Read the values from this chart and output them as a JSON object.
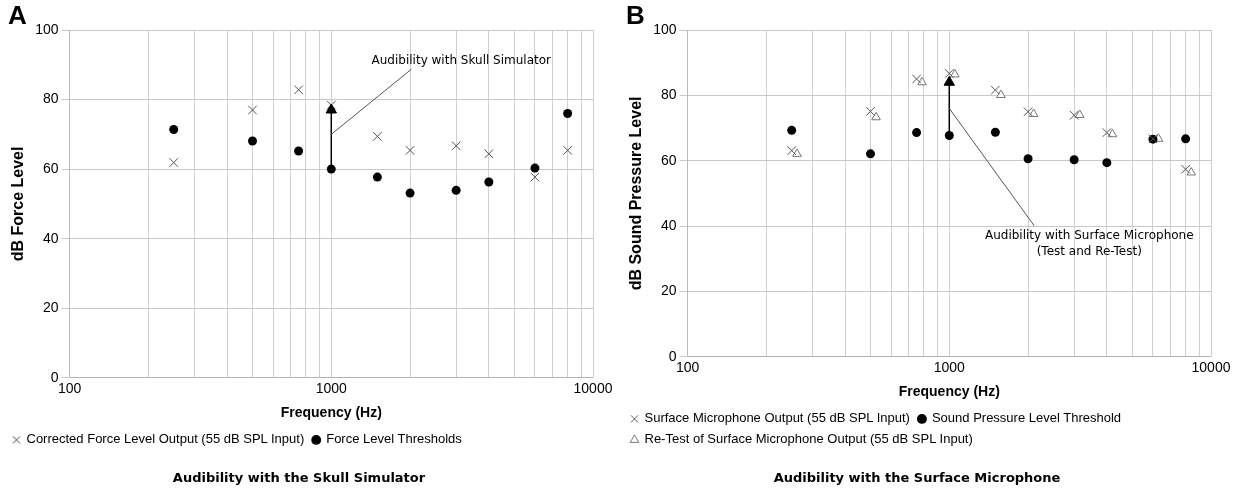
{
  "chart_data": [
    {
      "type": "scatter",
      "title": "Audibility with the Skull Simulator",
      "xlabel": "Frequency (Hz)",
      "ylabel": "dB Force Level",
      "log": "x",
      "grid": true,
      "legend": "bottom",
      "xlim": [
        100,
        10000
      ],
      "xticks": [
        100,
        {
          "value": 200,
          "label": null
        },
        {
          "value": 300,
          "label": null
        },
        {
          "value": 400,
          "label": null
        },
        {
          "value": 500,
          "label": null
        },
        {
          "value": 600,
          "label": null
        },
        {
          "value": 700,
          "label": null
        },
        {
          "value": 800,
          "label": null
        },
        {
          "value": 900,
          "label": null
        },
        1000,
        {
          "value": 2000,
          "label": null
        },
        {
          "value": 3000,
          "label": null
        },
        {
          "value": 4000,
          "label": null
        },
        {
          "value": 5000,
          "label": null
        },
        {
          "value": 6000,
          "label": null
        },
        {
          "value": 7000,
          "label": null
        },
        {
          "value": 8000,
          "label": null
        },
        {
          "value": 9000,
          "label": null
        },
        10000
      ],
      "ylim": [
        0,
        100
      ],
      "yticks": [
        0,
        20,
        40,
        60,
        80,
        100
      ],
      "x": [
        250,
        500,
        750,
        1000,
        1500,
        2000,
        3000,
        4000,
        6000,
        8000
      ],
      "series": [
        {
          "name": "Force Level Thresholds",
          "color": "#000000",
          "marker": "circle",
          "values": [
            71.4,
            68.1,
            65.2,
            60,
            57.7,
            53.1,
            53.9,
            56.3,
            60.3,
            76
          ]
        },
        {
          "name": "Corrected Force Level Output (55 dB SPL Input)",
          "color": "#555555",
          "marker": "cross",
          "values": [
            61.9,
            77,
            82.8,
            78.4,
            69.4,
            65.4,
            66.7,
            64.4,
            57.7,
            65.4
          ]
        },
        {
          "type": "line",
          "color": "#000000",
          "marker": "triangle",
          "x": [
            1000,
            1000
          ],
          "values": [
            60,
            77
          ]
        }
      ],
      "annotations": [
        "A",
        {
          "text": "Audibility with Skull Simulator",
          "x": 1000,
          "y": 70
        }
      ]
    },
    {
      "type": "scatter",
      "title": "Audibility with the Surface Microphone",
      "xlabel": "Frequency (Hz)",
      "ylabel": "dB Sound Pressure Level",
      "log": "x",
      "grid": true,
      "legend": "bottom",
      "xlim": [
        100,
        10000
      ],
      "xticks": [
        100,
        {
          "value": 200,
          "label": null
        },
        {
          "value": 300,
          "label": null
        },
        {
          "value": 400,
          "label": null
        },
        {
          "value": 500,
          "label": null
        },
        {
          "value": 600,
          "label": null
        },
        {
          "value": 700,
          "label": null
        },
        {
          "value": 800,
          "label": null
        },
        {
          "value": 900,
          "label": null
        },
        1000,
        {
          "value": 2000,
          "label": null
        },
        {
          "value": 3000,
          "label": null
        },
        {
          "value": 4000,
          "label": null
        },
        {
          "value": 5000,
          "label": null
        },
        {
          "value": 6000,
          "label": null
        },
        {
          "value": 7000,
          "label": null
        },
        {
          "value": 8000,
          "label": null
        },
        {
          "value": 9000,
          "label": null
        },
        10000
      ],
      "ylim": [
        0,
        100
      ],
      "yticks": [
        0,
        20,
        40,
        60,
        80,
        100
      ],
      "x": [
        250,
        500,
        750,
        1000,
        1500,
        2000,
        3000,
        4000,
        6000,
        8000
      ],
      "series": [
        {
          "name": "Sound Pressure Level Threshold",
          "color": "#000000",
          "marker": "circle",
          "values": [
            69.3,
            62.1,
            68.6,
            67.7,
            68.7,
            60.6,
            60.3,
            59.4,
            66.6,
            66.7
          ]
        },
        {
          "name": "Surface Microphone Output (55 dB SPL Input)",
          "color": "#555555",
          "marker": "cross",
          "values": [
            63.1,
            75.1,
            85,
            86.7,
            81.6,
            75,
            73.9,
            68.6,
            66.7,
            57.4
          ]
        },
        {
          "name": "Re-Test of Surface Microphone Output (55 dB SPL Input)",
          "color": "#777777",
          "marker": "triangle",
          "x": [
            262,
            525,
            787,
            1050,
            1575,
            2100,
            3150,
            4200,
            6300,
            8400
          ],
          "values": [
            62.1,
            73.3,
            84,
            86.4,
            80.1,
            74.3,
            74,
            68.1,
            66.7,
            56.4
          ]
        },
        {
          "type": "line",
          "color": "#000000",
          "marker": "triangle",
          "x": [
            1000,
            1000
          ],
          "values": [
            67.7,
            84
          ]
        }
      ],
      "annotations": [
        "B",
        {
          "text": "Audibility with Surface Microphone\n(Test and Re-Test)",
          "x": 1000,
          "y": 76
        }
      ]
    }
  ]
}
